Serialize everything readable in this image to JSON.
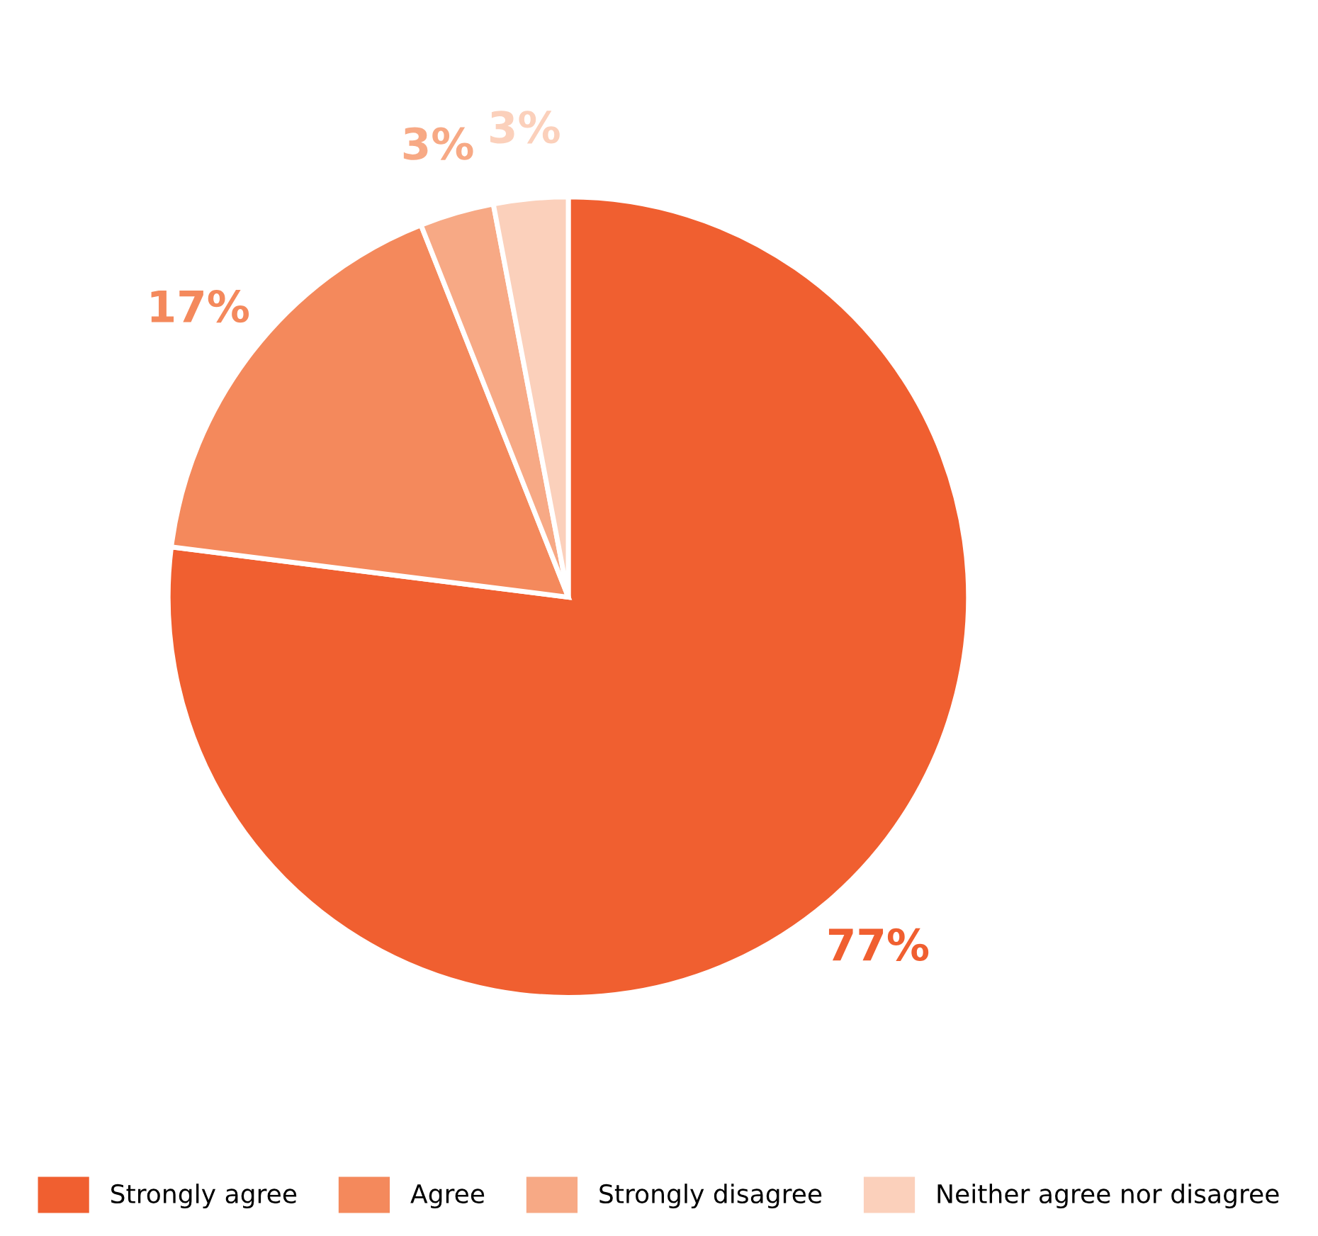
{
  "chart_data": {
    "type": "pie",
    "categories": [
      "Strongly agree",
      "Agree",
      "Strongly disagree",
      "Neither agree nor disagree"
    ],
    "values": [
      77,
      17,
      3,
      3
    ],
    "colors": [
      "#f05f30",
      "#f4895c",
      "#f7a985",
      "#fbd0bb"
    ],
    "value_labels": [
      "77%",
      "17%",
      "3%",
      "3%"
    ],
    "legend": "bottom"
  }
}
